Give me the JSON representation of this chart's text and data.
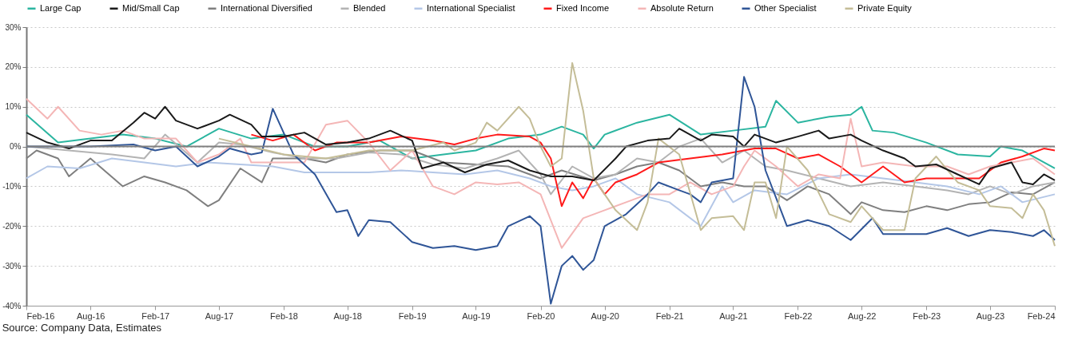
{
  "chart_data": {
    "type": "line",
    "legend": "top",
    "grid": "y",
    "annotations": [
      "Source: Company Data, Estimates"
    ],
    "xlim": [
      "2016-02",
      "2024-02"
    ],
    "xticks": [
      {
        "value": "2016-02",
        "label": "Feb-16"
      },
      {
        "value": "2016-08",
        "label": "Aug-16"
      },
      {
        "value": "2017-02",
        "label": "Feb-17"
      },
      {
        "value": "2017-08",
        "label": "Aug-17"
      },
      {
        "value": "2018-02",
        "label": "Feb-18"
      },
      {
        "value": "2018-08",
        "label": "Aug-18"
      },
      {
        "value": "2019-02",
        "label": "Feb-19"
      },
      {
        "value": "2019-08",
        "label": "Aug-19"
      },
      {
        "value": "2020-02",
        "label": "Feb-20"
      },
      {
        "value": "2020-08",
        "label": "Aug-20"
      },
      {
        "value": "2021-02",
        "label": "Feb-21"
      },
      {
        "value": "2021-08",
        "label": "Aug-21"
      },
      {
        "value": "2022-02",
        "label": "Feb-22"
      },
      {
        "value": "2022-08",
        "label": "Aug-22"
      },
      {
        "value": "2023-02",
        "label": "Feb-23"
      },
      {
        "value": "2023-08",
        "label": "Aug-23"
      },
      {
        "value": "2024-02",
        "label": "Feb-24"
      }
    ],
    "ylim": [
      -40,
      30
    ],
    "yticks": [
      {
        "value": -40,
        "label": "-40%"
      },
      {
        "value": -30,
        "label": "-30%"
      },
      {
        "value": -20,
        "label": "-20%"
      },
      {
        "value": -10,
        "label": "-10%"
      },
      {
        "value": 0,
        "label": "0%"
      },
      {
        "value": 10,
        "label": "10%"
      },
      {
        "value": 20,
        "label": "20%"
      },
      {
        "value": 30,
        "label": "30%"
      }
    ],
    "ref_lines": [
      {
        "axis": "y",
        "value": 0,
        "label": null,
        "color": "#808080"
      }
    ],
    "series": [
      {
        "name": "Large Cap",
        "color": "#2bb5a0",
        "x": [
          "2016-02",
          "2016-05",
          "2016-08",
          "2016-11",
          "2017-02",
          "2017-05",
          "2017-08",
          "2017-11",
          "2018-02",
          "2018-05",
          "2018-08",
          "2018-11",
          "2019-02",
          "2019-05",
          "2019-08",
          "2019-11",
          "2020-02",
          "2020-04",
          "2020-06",
          "2020-07",
          "2020-08",
          "2020-11",
          "2021-02",
          "2021-05",
          "2021-08",
          "2021-11",
          "2021-12",
          "2022-02",
          "2022-05",
          "2022-07",
          "2022-08",
          "2022-09",
          "2022-11",
          "2023-02",
          "2023-05",
          "2023-08",
          "2023-09",
          "2023-11",
          "2024-02"
        ],
        "values": [
          8,
          1,
          2,
          3,
          2,
          0,
          4.5,
          2,
          3,
          0,
          0,
          1.5,
          -3,
          -2,
          -1,
          2,
          3,
          5,
          3,
          -0.5,
          3,
          6,
          8,
          3,
          4,
          5,
          11.5,
          6,
          7.5,
          8,
          10,
          4,
          3.5,
          1,
          -2,
          -2.5,
          0,
          -1,
          -5.5
        ]
      },
      {
        "name": "Mid/Small Cap",
        "color": "#1a1a1a",
        "x": [
          "2016-02",
          "2016-04",
          "2016-06",
          "2016-08",
          "2016-10",
          "2016-12",
          "2017-01",
          "2017-02",
          "2017-03",
          "2017-04",
          "2017-06",
          "2017-08",
          "2017-09",
          "2017-11",
          "2017-12",
          "2018-02",
          "2018-04",
          "2018-06",
          "2018-08",
          "2018-10",
          "2018-12",
          "2019-02",
          "2019-03",
          "2019-05",
          "2019-07",
          "2019-09",
          "2019-11",
          "2020-01",
          "2020-03",
          "2020-05",
          "2020-07",
          "2020-09",
          "2020-10",
          "2020-12",
          "2021-02",
          "2021-03",
          "2021-05",
          "2021-06",
          "2021-08",
          "2021-09",
          "2021-10",
          "2021-12",
          "2022-02",
          "2022-04",
          "2022-05",
          "2022-07",
          "2022-08",
          "2022-10",
          "2022-12",
          "2023-01",
          "2023-03",
          "2023-05",
          "2023-07",
          "2023-08",
          "2023-10",
          "2023-11",
          "2023-12",
          "2024-01",
          "2024-02"
        ],
        "values": [
          3.5,
          1,
          -0.5,
          1.5,
          1.5,
          6,
          8.5,
          7,
          10,
          6.5,
          4.5,
          6.5,
          8,
          5.5,
          2.5,
          2.5,
          3.5,
          0.5,
          1,
          2,
          4,
          1.5,
          -5.5,
          -4,
          -6.5,
          -4.5,
          -3.5,
          -6,
          -7.5,
          -7.5,
          -8.5,
          -3,
          0,
          1.5,
          2,
          4.5,
          1.5,
          3,
          2.5,
          0,
          3,
          1,
          2.5,
          4,
          2,
          3,
          1.5,
          -1,
          -3,
          -5,
          -4.5,
          -7,
          -9.5,
          -5.5,
          -4,
          -9,
          -9.5,
          -7,
          -8.5
        ]
      },
      {
        "name": "International Diversified",
        "color": "#7f7f7f",
        "x": [
          "2016-02",
          "2016-03",
          "2016-05",
          "2016-06",
          "2016-08",
          "2016-11",
          "2017-01",
          "2017-03",
          "2017-05",
          "2017-07",
          "2017-08",
          "2017-10",
          "2017-12",
          "2018-01",
          "2018-04",
          "2018-06",
          "2018-08",
          "2018-11",
          "2019-02",
          "2019-05",
          "2019-08",
          "2019-11",
          "2020-02",
          "2020-04",
          "2020-07",
          "2020-09",
          "2020-11",
          "2021-01",
          "2021-03",
          "2021-05",
          "2021-07",
          "2021-09",
          "2021-11",
          "2022-01",
          "2022-03",
          "2022-05",
          "2022-07",
          "2022-08",
          "2022-10",
          "2022-12",
          "2023-02",
          "2023-04",
          "2023-06",
          "2023-08",
          "2023-10",
          "2023-12",
          "2024-02"
        ],
        "values": [
          -3,
          -1,
          -3,
          -7.5,
          -3,
          -10,
          -7.5,
          -9,
          -11,
          -15,
          -13.5,
          -5.5,
          -9,
          -3,
          -3,
          -4,
          -2,
          -1,
          -1,
          -4,
          -4.5,
          -5,
          -8,
          -6,
          -8.5,
          -7,
          -5,
          -4,
          -6,
          -10,
          -9,
          -10,
          -10,
          -13.5,
          -10,
          -12,
          -17,
          -14,
          -16,
          -16.5,
          -15,
          -16,
          -14.5,
          -14,
          -11.5,
          -12,
          -9
        ]
      },
      {
        "name": "Blended",
        "color": "#b3b3b3",
        "x": [
          "2016-02",
          "2016-06",
          "2016-10",
          "2017-01",
          "2017-03",
          "2017-06",
          "2017-08",
          "2017-10",
          "2018-01",
          "2018-04",
          "2018-07",
          "2018-10",
          "2019-01",
          "2019-04",
          "2019-07",
          "2019-10",
          "2019-12",
          "2020-02",
          "2020-03",
          "2020-05",
          "2020-07",
          "2020-09",
          "2020-11",
          "2021-01",
          "2021-03",
          "2021-05",
          "2021-07",
          "2021-09",
          "2021-11",
          "2022-01",
          "2022-04",
          "2022-07",
          "2022-10",
          "2023-01",
          "2023-04",
          "2023-06",
          "2023-08",
          "2023-10",
          "2023-12",
          "2024-02"
        ],
        "values": [
          0,
          -1,
          -2,
          -3,
          3,
          -4,
          1,
          0.5,
          -1.5,
          -3,
          -3,
          -1.5,
          -2,
          -4.5,
          -5.5,
          -3,
          -1,
          -7,
          -12,
          -5,
          -8,
          -7,
          -3,
          -4,
          0,
          2,
          -4,
          -1,
          -5,
          -6,
          -8,
          -10,
          -9,
          -10,
          -11,
          -12,
          -10,
          -12,
          -10,
          -9
        ]
      },
      {
        "name": "International Specialist",
        "color": "#b4c7e7",
        "x": [
          "2016-02",
          "2016-04",
          "2016-07",
          "2016-10",
          "2017-01",
          "2017-04",
          "2017-07",
          "2017-10",
          "2018-01",
          "2018-04",
          "2018-07",
          "2018-10",
          "2019-01",
          "2019-04",
          "2019-07",
          "2019-10",
          "2020-01",
          "2020-03",
          "2020-05",
          "2020-07",
          "2020-09",
          "2020-11",
          "2021-02",
          "2021-05",
          "2021-07",
          "2021-08",
          "2021-10",
          "2022-01",
          "2022-04",
          "2022-07",
          "2022-10",
          "2023-01",
          "2023-04",
          "2023-07",
          "2023-09",
          "2023-11",
          "2024-02"
        ],
        "values": [
          -8,
          -5,
          -5.5,
          -3,
          -4,
          -5,
          -4,
          -4.5,
          -5,
          -6.5,
          -6.5,
          -6.5,
          -6,
          -6.5,
          -7,
          -6,
          -8,
          -10,
          -11,
          -10,
          -8,
          -12,
          -14,
          -20,
          -10,
          -14,
          -11,
          -12,
          -8,
          -7,
          -8,
          -9,
          -10,
          -12,
          -10,
          -14,
          -12
        ]
      },
      {
        "name": "Fixed Income",
        "color": "#ff1a1a",
        "x": [
          "2017-11",
          "2018-01",
          "2018-03",
          "2018-05",
          "2018-07",
          "2018-10",
          "2019-01",
          "2019-04",
          "2019-06",
          "2019-08",
          "2019-10",
          "2020-01",
          "2020-02",
          "2020-03",
          "2020-04",
          "2020-05",
          "2020-06",
          "2020-07",
          "2020-08",
          "2020-09",
          "2020-11",
          "2021-01",
          "2021-04",
          "2021-07",
          "2021-10",
          "2021-12",
          "2022-02",
          "2022-04",
          "2022-06",
          "2022-08",
          "2022-10",
          "2022-12",
          "2023-02",
          "2023-05",
          "2023-07",
          "2023-09",
          "2023-11",
          "2024-01",
          "2024-02"
        ],
        "values": [
          3,
          1.5,
          3,
          -1,
          1,
          1,
          2.5,
          1.5,
          0.5,
          2,
          3,
          2.5,
          1,
          -3,
          -15,
          -9,
          -13,
          -8,
          -12,
          -9,
          -7,
          -4,
          -3,
          -2,
          -0.5,
          -0.5,
          -3,
          -2,
          -5,
          -9,
          -5,
          -9,
          -8,
          -8,
          -8,
          -4,
          -2.5,
          -0.5,
          -1
        ]
      },
      {
        "name": "Absolute Return",
        "color": "#f4b6b6",
        "x": [
          "2016-02",
          "2016-04",
          "2016-05",
          "2016-07",
          "2016-09",
          "2016-11",
          "2017-01",
          "2017-04",
          "2017-06",
          "2017-08",
          "2017-10",
          "2017-11",
          "2018-01",
          "2018-04",
          "2018-06",
          "2018-08",
          "2018-10",
          "2018-12",
          "2019-02",
          "2019-04",
          "2019-06",
          "2019-08",
          "2019-10",
          "2019-12",
          "2020-02",
          "2020-04",
          "2020-06",
          "2020-08",
          "2020-10",
          "2020-12",
          "2021-02",
          "2021-04",
          "2021-06",
          "2021-08",
          "2021-09",
          "2021-10",
          "2021-12",
          "2022-02",
          "2022-04",
          "2022-06",
          "2022-07",
          "2022-08",
          "2022-10",
          "2023-01",
          "2023-04",
          "2023-06",
          "2023-08",
          "2023-10",
          "2023-12",
          "2024-02"
        ],
        "values": [
          12,
          7,
          10,
          4,
          3,
          4,
          2,
          2,
          -4,
          -2,
          2,
          -4,
          -4,
          -4,
          5.5,
          6.5,
          1,
          -6,
          -1,
          -10,
          -12,
          -9,
          -9.5,
          -9,
          -12,
          -25.5,
          -18,
          -16,
          -14,
          -12,
          -12,
          -9,
          -12,
          -10,
          -5,
          -1,
          -5,
          -10,
          -7,
          -8,
          7,
          -5,
          -4,
          -5,
          -5,
          -7,
          -5,
          -4,
          -3,
          -7
        ]
      },
      {
        "name": "Other Specialist",
        "color": "#2f5597",
        "x": [
          "2016-02",
          "2016-08",
          "2016-12",
          "2017-02",
          "2017-04",
          "2017-06",
          "2017-08",
          "2017-09",
          "2017-11",
          "2017-12",
          "2018-01",
          "2018-03",
          "2018-05",
          "2018-07",
          "2018-08",
          "2018-09",
          "2018-10",
          "2018-12",
          "2019-02",
          "2019-04",
          "2019-06",
          "2019-08",
          "2019-10",
          "2019-11",
          "2020-01",
          "2020-02",
          "2020-03",
          "2020-04",
          "2020-05",
          "2020-06",
          "2020-07",
          "2020-08",
          "2020-10",
          "2020-12",
          "2021-01",
          "2021-03",
          "2021-04",
          "2021-05",
          "2021-06",
          "2021-08",
          "2021-09",
          "2021-10",
          "2021-11",
          "2022-01",
          "2022-03",
          "2022-05",
          "2022-07",
          "2022-09",
          "2022-10",
          "2022-12",
          "2023-02",
          "2023-04",
          "2023-06",
          "2023-08",
          "2023-10",
          "2023-12",
          "2024-01",
          "2024-02"
        ],
        "values": [
          0,
          0,
          0.5,
          -1,
          0,
          -5,
          -2.5,
          -0.5,
          -2,
          -1.5,
          9.5,
          -2,
          -7,
          -16.5,
          -16,
          -22.5,
          -18.5,
          -19,
          -24,
          -25.5,
          -25,
          -26,
          -25,
          -20,
          -17.5,
          -20,
          -39.5,
          -30,
          -27.5,
          -31,
          -28.5,
          -20,
          -17,
          -12,
          -9,
          -11,
          -12,
          -14,
          -9,
          -8,
          17.5,
          10,
          -6,
          -20,
          -18.5,
          -20,
          -23.5,
          -18,
          -22,
          -22,
          -22,
          -20.5,
          -22.5,
          -21,
          -21.5,
          -22.5,
          -21,
          -23.5
        ]
      },
      {
        "name": "Private Equity",
        "color": "#c4bd97",
        "x": [
          "2017-08",
          "2017-11",
          "2018-02",
          "2018-06",
          "2018-10",
          "2019-02",
          "2019-05",
          "2019-06",
          "2019-08",
          "2019-09",
          "2019-10",
          "2019-12",
          "2020-01",
          "2020-02",
          "2020-03",
          "2020-04",
          "2020-05",
          "2020-06",
          "2020-07",
          "2020-09",
          "2020-11",
          "2020-12",
          "2021-01",
          "2021-03",
          "2021-05",
          "2021-06",
          "2021-08",
          "2021-09",
          "2021-10",
          "2021-11",
          "2021-12",
          "2022-01",
          "2022-03",
          "2022-05",
          "2022-07",
          "2022-08",
          "2022-10",
          "2022-12",
          "2023-01",
          "2023-03",
          "2023-05",
          "2023-07",
          "2023-08",
          "2023-10",
          "2023-11",
          "2023-12",
          "2024-01",
          "2024-02"
        ],
        "values": [
          2,
          0,
          -2,
          -3,
          -1,
          -1,
          1,
          -1,
          1,
          6,
          4,
          10,
          7,
          0,
          -5,
          -3,
          21,
          9,
          -8,
          -16,
          -21,
          -14,
          2,
          -2,
          -21,
          -18,
          -17.5,
          -21,
          -9,
          -9,
          -18,
          0,
          -6,
          -17,
          -19,
          -15,
          -21,
          -21,
          -8,
          -2.5,
          -9,
          -11,
          -15,
          -15.5,
          -18,
          -12,
          -16,
          -25
        ]
      }
    ]
  }
}
